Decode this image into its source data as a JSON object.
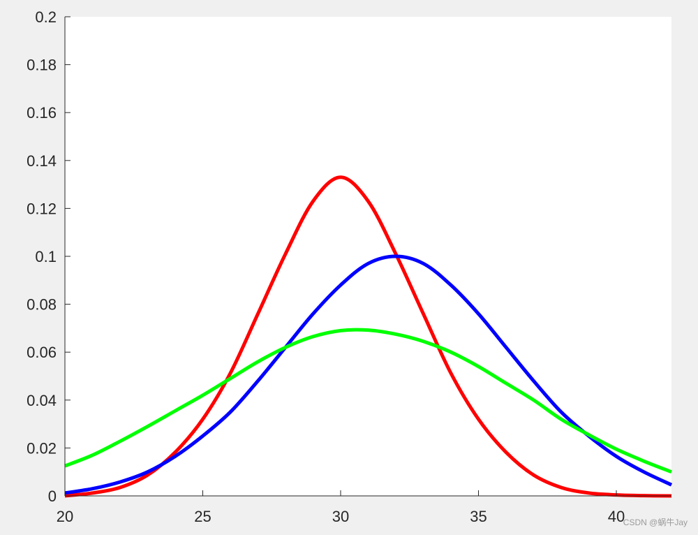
{
  "chart_data": {
    "type": "line",
    "title": "",
    "xlabel": "",
    "ylabel": "",
    "xlim": [
      20,
      42
    ],
    "ylim": [
      0,
      0.2
    ],
    "xticks": [
      20,
      25,
      30,
      35,
      40
    ],
    "xtick_labels": [
      "20",
      "25",
      "30",
      "35",
      "40"
    ],
    "yticks": [
      0,
      0.02,
      0.04,
      0.06,
      0.08,
      0.1,
      0.12,
      0.14,
      0.16,
      0.18,
      0.2
    ],
    "ytick_labels": [
      "0",
      "0.02",
      "0.04",
      "0.06",
      "0.08",
      "0.1",
      "0.12",
      "0.14",
      "0.16",
      "0.18",
      "0.2"
    ],
    "grid": false,
    "legend": "none",
    "series": [
      {
        "color": "#ff0000",
        "x": [
          20,
          21,
          22,
          23,
          24,
          25,
          26,
          27,
          28,
          29,
          30,
          31,
          32,
          33,
          34,
          35,
          36,
          37,
          38,
          39,
          40,
          41,
          42
        ],
        "y": [
          0.0,
          0.0012,
          0.0035,
          0.0087,
          0.0182,
          0.032,
          0.0512,
          0.076,
          0.101,
          0.123,
          0.133,
          0.123,
          0.101,
          0.076,
          0.0512,
          0.032,
          0.0182,
          0.0087,
          0.0035,
          0.0012,
          0.0004,
          0.0001,
          0.0
        ]
      },
      {
        "color": "#0000ff",
        "x": [
          20,
          21,
          22,
          23,
          24,
          25,
          26,
          27,
          28,
          29,
          30,
          31,
          32,
          33,
          34,
          35,
          36,
          37,
          38,
          39,
          40,
          41,
          42
        ],
        "y": [
          0.0012,
          0.003,
          0.0058,
          0.01,
          0.0165,
          0.025,
          0.035,
          0.048,
          0.062,
          0.076,
          0.088,
          0.097,
          0.1,
          0.097,
          0.088,
          0.076,
          0.062,
          0.048,
          0.035,
          0.025,
          0.0165,
          0.01,
          0.0046
        ]
      },
      {
        "color": "#00ff00",
        "x": [
          20,
          21,
          22,
          23,
          24,
          25,
          26,
          27,
          28,
          29,
          30,
          31,
          32,
          33,
          34,
          35,
          36,
          37,
          38,
          39,
          40,
          41,
          42
        ],
        "y": [
          0.0125,
          0.017,
          0.0228,
          0.029,
          0.0355,
          0.042,
          0.049,
          0.056,
          0.062,
          0.0665,
          0.069,
          0.0692,
          0.0675,
          0.0645,
          0.06,
          0.054,
          0.047,
          0.04,
          0.032,
          0.0255,
          0.0195,
          0.0145,
          0.01
        ]
      }
    ]
  },
  "watermark": "CSDN @蜗牛Jay"
}
